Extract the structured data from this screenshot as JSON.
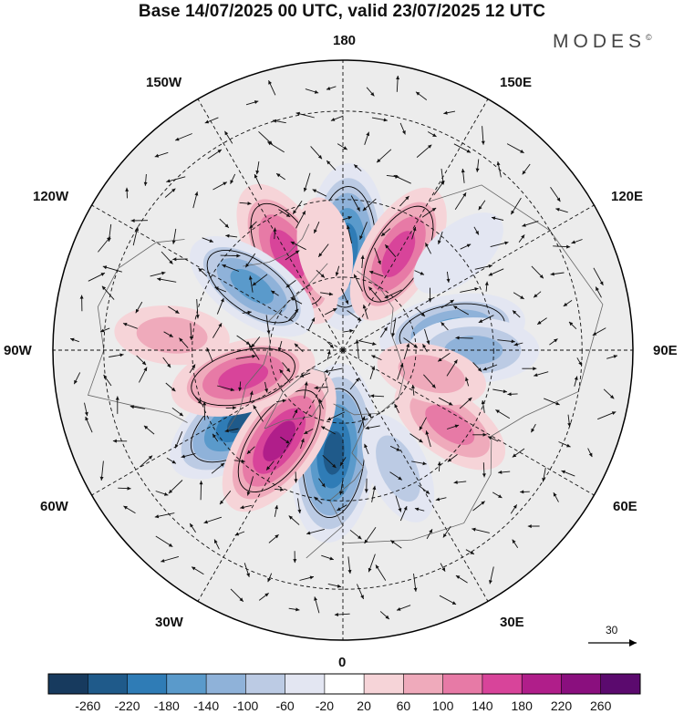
{
  "title": "Base 14/07/2025 00 UTC, valid 23/07/2025 12 UTC",
  "brand": "MODES",
  "brand_mark": "©",
  "meridian_labels": {
    "top": "180",
    "bottom": "0",
    "left": "90W",
    "right": "90E",
    "upper_left_150": "150W",
    "upper_right_150": "150E",
    "left_120": "120W",
    "right_120": "120E",
    "lower_left_60": "60W",
    "lower_right_60": "60E",
    "lower_left_30": "30W",
    "lower_right_30": "30E"
  },
  "vector_reference": {
    "value": "30"
  },
  "colorbar": {
    "labels": [
      "-260",
      "-220",
      "-180",
      "-140",
      "-100",
      "-60",
      "-20",
      "20",
      "60",
      "100",
      "140",
      "180",
      "220",
      "260"
    ],
    "colors": [
      "#173a5e",
      "#1f5a8a",
      "#2f7cb6",
      "#5a9acb",
      "#8fb2d9",
      "#bccbe4",
      "#e3e6f2",
      "#ffffff",
      "#f6d4d8",
      "#efaabb",
      "#e77aa6",
      "#d8449a",
      "#b01e8a",
      "#8a0f7e",
      "#5b0a6e"
    ]
  },
  "anomalies": [
    {
      "lon": -5,
      "lat": 62,
      "value": -230
    },
    {
      "lon": -55,
      "lat": 58,
      "value": -220
    },
    {
      "lon": -35,
      "lat": 60,
      "value": 190
    },
    {
      "lon": 178,
      "lat": 62,
      "value": -200
    },
    {
      "lon": -150,
      "lat": 60,
      "value": 170
    },
    {
      "lon": -125,
      "lat": 60,
      "value": -140
    },
    {
      "lon": 150,
      "lat": 60,
      "value": 150
    },
    {
      "lon": 100,
      "lat": 60,
      "value": -150
    },
    {
      "lon": 90,
      "lat": 55,
      "value": -110
    },
    {
      "lon": 55,
      "lat": 55,
      "value": 100
    },
    {
      "lon": 25,
      "lat": 55,
      "value": -70
    },
    {
      "lon": -95,
      "lat": 45,
      "value": 70
    },
    {
      "lon": -75,
      "lat": 62,
      "value": 150
    },
    {
      "lon": -170,
      "lat": 62,
      "value": 40
    },
    {
      "lon": 130,
      "lat": 50,
      "value": -50
    },
    {
      "lon": 75,
      "lat": 65,
      "value": 60
    }
  ]
}
